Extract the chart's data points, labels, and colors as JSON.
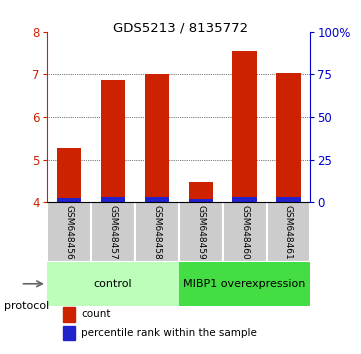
{
  "title": "GDS5213 / 8135772",
  "samples": [
    "GSM648456",
    "GSM648457",
    "GSM648458",
    "GSM648459",
    "GSM648460",
    "GSM648461"
  ],
  "count_values": [
    5.27,
    6.87,
    7.02,
    4.48,
    7.55,
    7.03
  ],
  "percentile_values": [
    2.5,
    3.0,
    3.0,
    2.0,
    3.0,
    2.8
  ],
  "ylim_left": [
    4.0,
    8.0
  ],
  "ylim_right": [
    0,
    100
  ],
  "yticks_left": [
    4,
    5,
    6,
    7,
    8
  ],
  "yticks_right": [
    0,
    25,
    50,
    75,
    100
  ],
  "yticklabels_right": [
    "0",
    "25",
    "50",
    "75",
    "100%"
  ],
  "bar_width": 0.55,
  "count_color": "#cc2200",
  "percentile_color": "#2222cc",
  "control_color": "#bbffbb",
  "overexpression_color": "#44dd44",
  "control_label": "control",
  "overexpression_label": "MIBP1 overexpression",
  "protocol_label": "protocol",
  "legend_count": "count",
  "legend_percentile": "percentile rank within the sample",
  "left_tick_color": "#cc2200",
  "right_tick_color": "#0000cc",
  "bar_bottom": 4.0,
  "gray_box_color": "#cccccc",
  "white_sep_color": "#ffffff"
}
